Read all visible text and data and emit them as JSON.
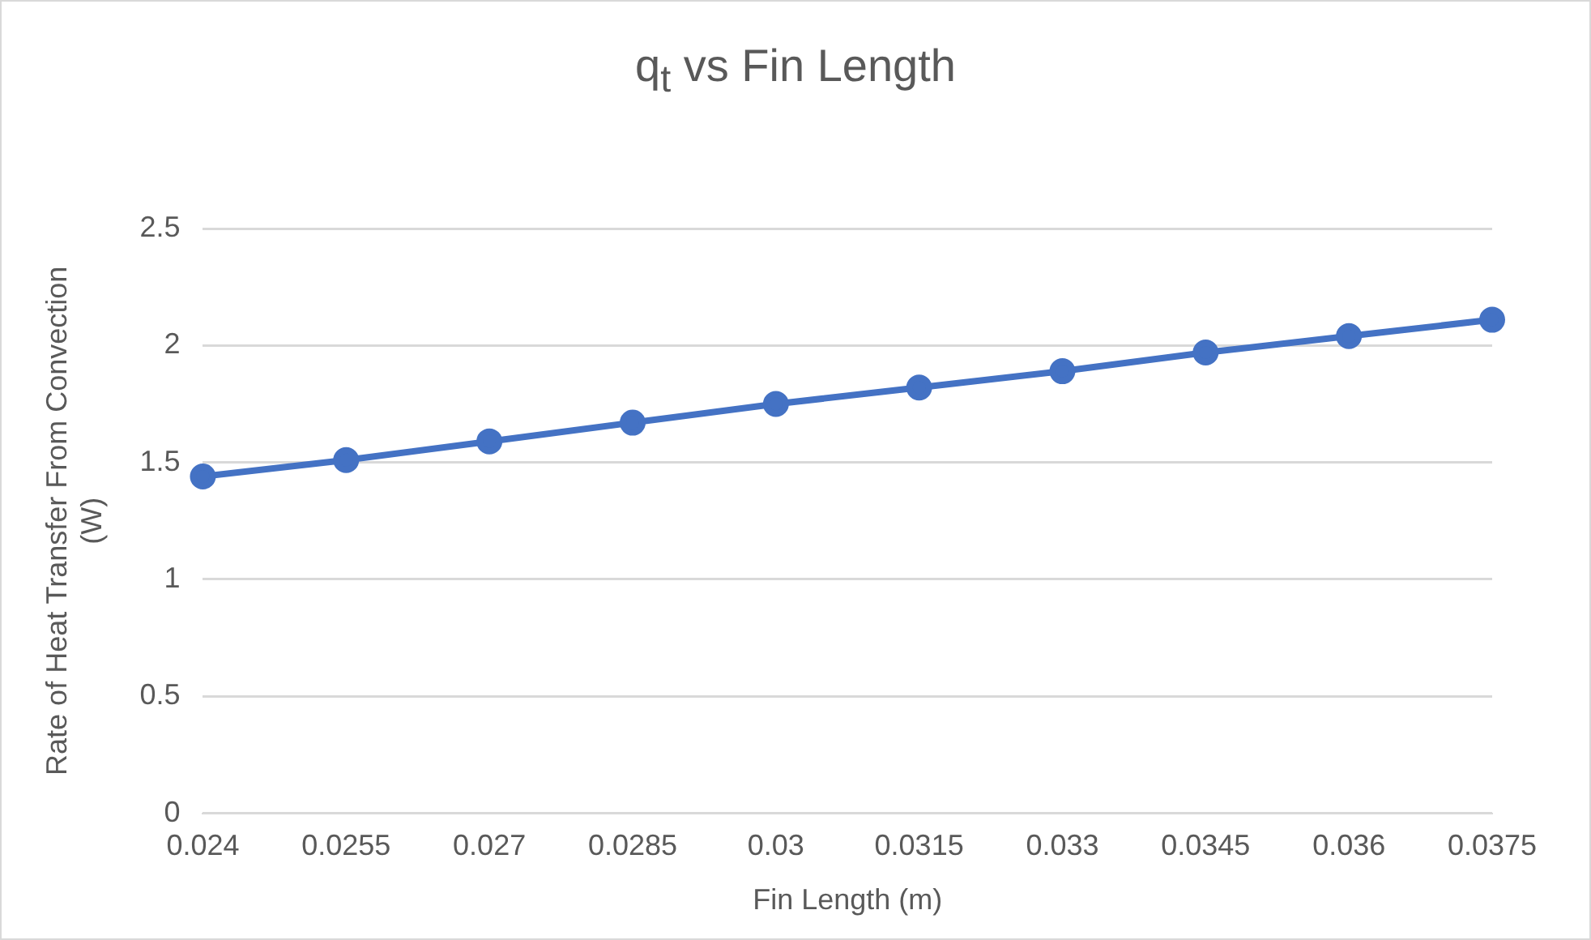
{
  "chart_data": {
    "type": "line",
    "title": "q$_{t}$ vs Fin Length",
    "xlabel": "Fin Length (m)",
    "ylabel": "Rate of Heat Transfer From Convection (W)",
    "categories": [
      "0.024",
      "0.0255",
      "0.027",
      "0.0285",
      "0.03",
      "0.0315",
      "0.033",
      "0.0345",
      "0.036",
      "0.0375"
    ],
    "series": [
      {
        "color": "#4472c4",
        "values": [
          1.44,
          1.51,
          1.59,
          1.67,
          1.75,
          1.82,
          1.89,
          1.97,
          2.04,
          2.11
        ]
      }
    ],
    "ylim": [
      0,
      2.5
    ],
    "yticks": [
      0,
      0.5,
      1,
      1.5,
      2,
      2.5
    ],
    "grid": "y",
    "marker": "circle",
    "line_style": "solid"
  }
}
